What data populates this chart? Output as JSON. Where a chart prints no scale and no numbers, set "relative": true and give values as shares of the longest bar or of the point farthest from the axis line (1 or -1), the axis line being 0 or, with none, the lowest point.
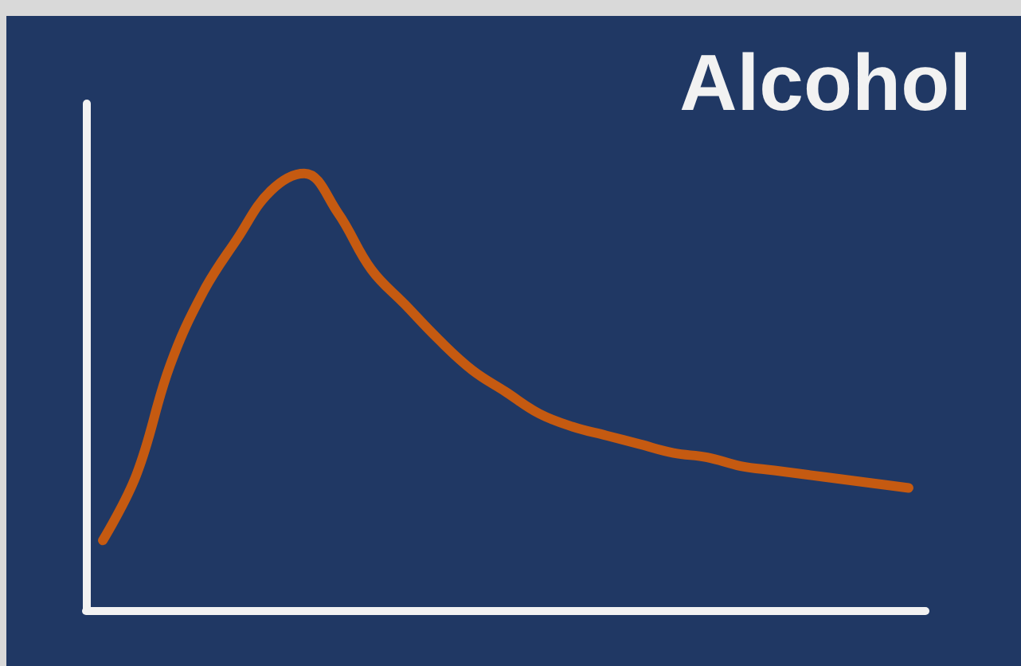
{
  "chart_data": {
    "type": "line",
    "title": "Alcohol",
    "relative": true,
    "categories": [
      null,
      null,
      null,
      null,
      null,
      null,
      null,
      null,
      null,
      null,
      null,
      null,
      null,
      null,
      null,
      null,
      null,
      null,
      null,
      null,
      null,
      null,
      null,
      null,
      null
    ],
    "series": [
      {
        "color": "#c55a11",
        "values": [
          0.16,
          0.31,
          0.56,
          0.73,
          0.85,
          0.96,
          1.0,
          0.91,
          0.78,
          0.7,
          0.62,
          0.55,
          0.5,
          0.45,
          0.42,
          0.4,
          0.38,
          0.36,
          0.35,
          0.33,
          0.32,
          0.31,
          0.3,
          0.29,
          0.28
        ]
      }
    ],
    "grid": false,
    "marker": "none",
    "line_style": "solid"
  }
}
